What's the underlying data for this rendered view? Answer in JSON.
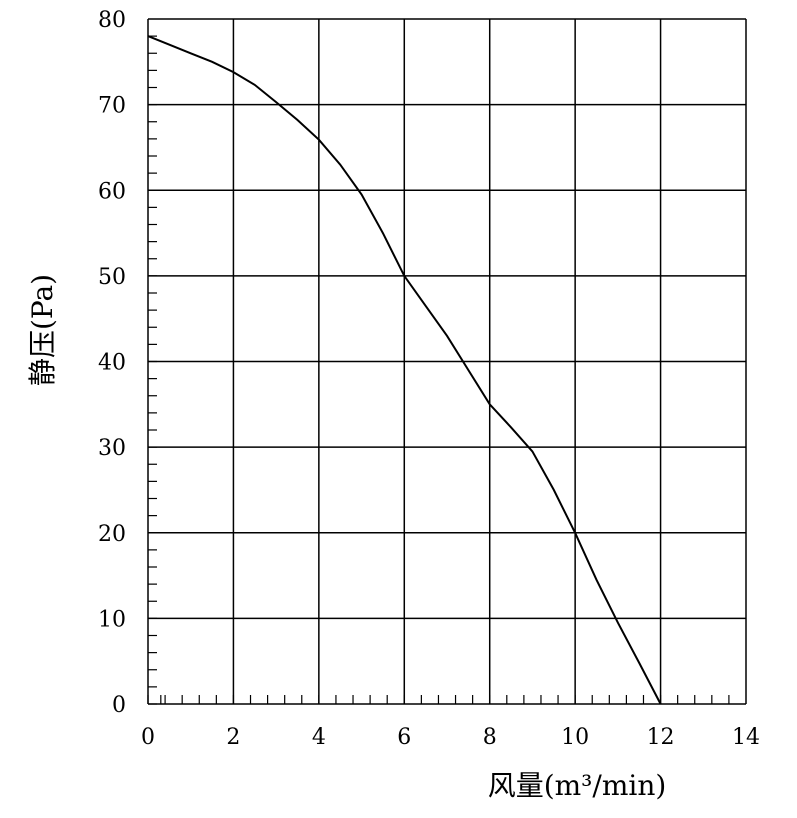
{
  "chart_data": {
    "type": "line",
    "title": "",
    "xlabel": "风量(m³/min)",
    "ylabel": "静压(Pa)",
    "xlim": [
      0,
      14
    ],
    "ylim": [
      0,
      80
    ],
    "xticks": [
      0,
      2,
      4,
      6,
      8,
      10,
      12,
      14
    ],
    "yticks": [
      0,
      10,
      20,
      30,
      40,
      50,
      60,
      70,
      80
    ],
    "grid": true,
    "line_color": "#000000",
    "series": [
      {
        "x": [
          0,
          0.5,
          1,
          1.5,
          2,
          2.5,
          3,
          3.5,
          4,
          4.5,
          5,
          5.5,
          6,
          6.5,
          7,
          7.5,
          8,
          8.5,
          9,
          9.5,
          10,
          10.5,
          11,
          11.5,
          12
        ],
        "y": [
          78,
          77,
          76,
          75,
          73.8,
          72.3,
          70.3,
          68.2,
          65.9,
          63,
          59.5,
          55,
          50,
          46.5,
          43,
          39,
          35,
          32.3,
          29.5,
          25,
          20,
          14.5,
          9.5,
          4.8,
          0
        ]
      }
    ]
  }
}
